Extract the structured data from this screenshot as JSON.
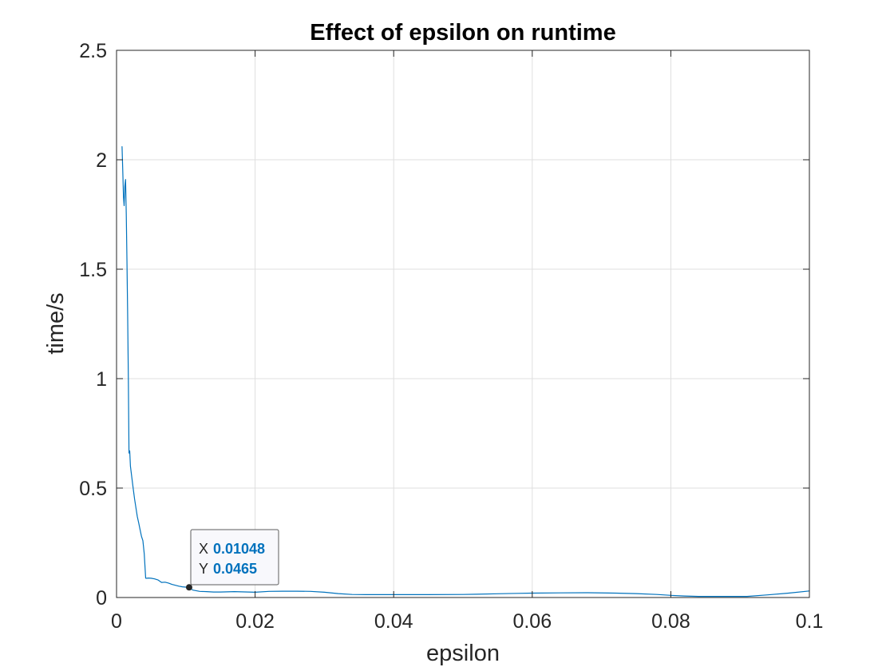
{
  "chart_data": {
    "type": "line",
    "title": "Effect of epsilon on runtime",
    "xlabel": "epsilon",
    "ylabel": "time/s",
    "xlim": [
      0,
      0.1
    ],
    "ylim": [
      0,
      2.5
    ],
    "xticks": [
      0,
      0.02,
      0.04,
      0.06,
      0.08,
      0.1
    ],
    "xtick_labels": [
      "0",
      "0.02",
      "0.04",
      "0.06",
      "0.08",
      "0.1"
    ],
    "yticks": [
      0,
      0.5,
      1,
      1.5,
      2,
      2.5
    ],
    "ytick_labels": [
      "0",
      "0.5",
      "1",
      "1.5",
      "2",
      "2.5"
    ],
    "grid": true,
    "series": [
      {
        "color": "#0072BD",
        "x": [
          0.0008,
          0.0009,
          0.001,
          0.0011,
          0.0012,
          0.0013,
          0.0014,
          0.0015,
          0.0016,
          0.0017,
          0.0018,
          0.0019,
          0.002,
          0.0022,
          0.0024,
          0.0026,
          0.0028,
          0.003,
          0.0032,
          0.0034,
          0.0036,
          0.0038,
          0.004,
          0.0042,
          0.0044,
          0.0046,
          0.005,
          0.0055,
          0.006,
          0.0065,
          0.007,
          0.0075,
          0.008,
          0.0085,
          0.009,
          0.0095,
          0.01,
          0.01048,
          0.011,
          0.012,
          0.013,
          0.014,
          0.015,
          0.016,
          0.017,
          0.018,
          0.019,
          0.02,
          0.022,
          0.024,
          0.026,
          0.028,
          0.03,
          0.032,
          0.034,
          0.036,
          0.038,
          0.04,
          0.045,
          0.05,
          0.052,
          0.055,
          0.058,
          0.06,
          0.064,
          0.068,
          0.072,
          0.075,
          0.078,
          0.08,
          0.082,
          0.084,
          0.086,
          0.088,
          0.09,
          0.091,
          0.094,
          0.097,
          0.1
        ],
        "values": [
          2.06,
          1.95,
          1.83,
          1.79,
          1.88,
          1.91,
          1.75,
          1.55,
          1.3,
          1.0,
          0.66,
          0.67,
          0.6,
          0.55,
          0.5,
          0.45,
          0.41,
          0.37,
          0.34,
          0.31,
          0.28,
          0.26,
          0.2,
          0.088,
          0.088,
          0.089,
          0.088,
          0.085,
          0.08,
          0.069,
          0.07,
          0.066,
          0.06,
          0.056,
          0.052,
          0.049,
          0.0475,
          0.0465,
          0.034,
          0.028,
          0.027,
          0.025,
          0.025,
          0.026,
          0.027,
          0.026,
          0.025,
          0.024,
          0.028,
          0.029,
          0.029,
          0.028,
          0.024,
          0.018,
          0.014,
          0.013,
          0.013,
          0.013,
          0.013,
          0.014,
          0.015,
          0.017,
          0.019,
          0.02,
          0.021,
          0.022,
          0.02,
          0.018,
          0.014,
          0.01,
          0.007,
          0.005,
          0.005,
          0.005,
          0.005,
          0.005,
          0.012,
          0.02,
          0.03
        ]
      }
    ],
    "datatip": {
      "x_key": "X",
      "x_value": "0.01048",
      "y_key": "Y",
      "y_value": "0.0465",
      "point": [
        0.01048,
        0.0465
      ],
      "value_color": "#0072BD"
    }
  }
}
